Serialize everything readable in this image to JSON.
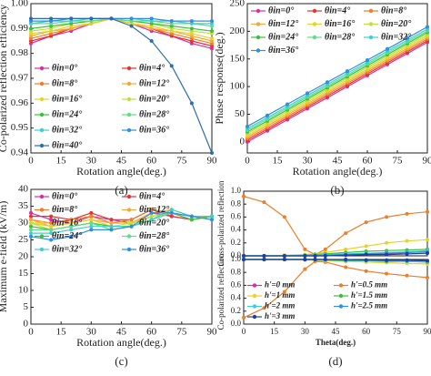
{
  "chart_data": [
    {
      "type": "line",
      "panel_label": "(a)",
      "xlabel": "Rotation angle(deg.)",
      "ylabel": "Co-polarized reflection efficiency",
      "x": [
        0,
        10,
        20,
        30,
        40,
        50,
        60,
        70,
        80,
        90
      ],
      "xlim": [
        0,
        90
      ],
      "xticks": [
        0,
        15,
        30,
        45,
        60,
        75,
        90
      ],
      "ylim": [
        0.94,
        1.0
      ],
      "yticks": [
        0.94,
        0.95,
        0.96,
        0.97,
        0.98,
        0.99,
        {
          "value": 1,
          "label": "1.00"
        }
      ],
      "legend": "lower left",
      "legend_columns": 2,
      "series": [
        {
          "name": "θin=0°",
          "color": "#d62fa0",
          "values": [
            0.984,
            0.987,
            0.989,
            0.992,
            0.994,
            0.992,
            0.989,
            0.987,
            0.984,
            0.982
          ]
        },
        {
          "name": "θin=4°",
          "color": "#e03535",
          "values": [
            0.985,
            0.987,
            0.99,
            0.992,
            0.994,
            0.992,
            0.99,
            0.987,
            0.985,
            0.983
          ]
        },
        {
          "name": "θin=8°",
          "color": "#ef7d2a",
          "values": [
            0.986,
            0.988,
            0.99,
            0.992,
            0.994,
            0.992,
            0.99,
            0.988,
            0.986,
            0.984
          ]
        },
        {
          "name": "θin=12°",
          "color": "#f2a93b",
          "values": [
            0.987,
            0.989,
            0.99,
            0.992,
            0.994,
            0.992,
            0.99,
            0.989,
            0.987,
            0.985
          ]
        },
        {
          "name": "θin=16°",
          "color": "#e9d224",
          "values": [
            0.988,
            0.989,
            0.991,
            0.992,
            0.994,
            0.992,
            0.991,
            0.989,
            0.988,
            0.986
          ]
        },
        {
          "name": "θin=20°",
          "color": "#bfe040",
          "values": [
            0.989,
            0.99,
            0.992,
            0.993,
            0.994,
            0.993,
            0.992,
            0.99,
            0.989,
            0.988
          ]
        },
        {
          "name": "θin=24°",
          "color": "#3cbf3c",
          "values": [
            0.99,
            0.991,
            0.992,
            0.993,
            0.994,
            0.993,
            0.992,
            0.991,
            0.99,
            0.989
          ]
        },
        {
          "name": "θin=28°",
          "color": "#62dd86",
          "values": [
            0.992,
            0.992,
            0.993,
            0.993,
            0.994,
            0.993,
            0.993,
            0.992,
            0.992,
            0.991
          ]
        },
        {
          "name": "θin=32°",
          "color": "#3fcfd2",
          "values": [
            0.992,
            0.993,
            0.993,
            0.994,
            0.994,
            0.994,
            0.993,
            0.993,
            0.992,
            0.992
          ]
        },
        {
          "name": "θin=36°",
          "color": "#2f8fe0",
          "values": [
            0.993,
            0.993,
            0.994,
            0.994,
            0.994,
            0.994,
            0.994,
            0.993,
            0.993,
            0.993
          ]
        },
        {
          "name": "θin=40°",
          "color": "#2b6eae",
          "values": [
            0.994,
            0.994,
            0.994,
            0.994,
            0.994,
            0.991,
            0.985,
            0.975,
            0.96,
            0.94
          ]
        }
      ]
    },
    {
      "type": "line",
      "panel_label": "(b)",
      "xlabel": "Rotation angle(deg.)",
      "ylabel": "Phase response(deg.)",
      "x": [
        0,
        10,
        20,
        30,
        40,
        50,
        60,
        70,
        80,
        90
      ],
      "xlim": [
        0,
        90
      ],
      "xticks": [
        0,
        15,
        30,
        45,
        60,
        75,
        90
      ],
      "ylim": [
        -20,
        250
      ],
      "yticks": [
        0,
        50,
        100,
        150,
        200,
        250
      ],
      "legend": "upper left",
      "legend_columns": 3,
      "series": [
        {
          "name": "θin=0°",
          "color": "#d62fa0",
          "values": [
            0,
            20,
            40,
            60,
            80,
            100,
            120,
            140,
            160,
            180
          ]
        },
        {
          "name": "θin=4°",
          "color": "#e03535",
          "values": [
            3,
            23,
            43,
            63,
            83,
            103,
            123,
            143,
            163,
            183
          ]
        },
        {
          "name": "θin=8°",
          "color": "#ef7d2a",
          "values": [
            6,
            26,
            46,
            66,
            86,
            106,
            126,
            146,
            166,
            186
          ]
        },
        {
          "name": "θin=12°",
          "color": "#f2a93b",
          "values": [
            9,
            29,
            49,
            69,
            89,
            109,
            129,
            149,
            169,
            189
          ]
        },
        {
          "name": "θin=16°",
          "color": "#e9d224",
          "values": [
            12,
            32,
            52,
            72,
            92,
            112,
            132,
            152,
            172,
            192
          ]
        },
        {
          "name": "θin=20°",
          "color": "#bfe040",
          "values": [
            15,
            35,
            55,
            75,
            95,
            115,
            135,
            155,
            175,
            195
          ]
        },
        {
          "name": "θin=24°",
          "color": "#3cbf3c",
          "values": [
            18,
            38,
            58,
            78,
            98,
            118,
            138,
            158,
            178,
            198
          ]
        },
        {
          "name": "θin=28°",
          "color": "#62dd86",
          "values": [
            21,
            41,
            61,
            81,
            101,
            121,
            141,
            161,
            181,
            201
          ]
        },
        {
          "name": "θin=32°",
          "color": "#3fcfd2",
          "values": [
            24,
            44,
            64,
            84,
            104,
            124,
            144,
            164,
            184,
            204
          ]
        },
        {
          "name": "θin=36°",
          "color": "#2f8fe0",
          "values": [
            28,
            48,
            68,
            88,
            108,
            128,
            148,
            168,
            188,
            208
          ]
        }
      ]
    },
    {
      "type": "line",
      "panel_label": "(c)",
      "xlabel": "Rotation angle(deg.)",
      "ylabel": "Maximum e-field (kV/m)",
      "x": [
        0,
        10,
        20,
        30,
        40,
        50,
        60,
        70,
        80,
        90
      ],
      "xlim": [
        0,
        90
      ],
      "xticks": [
        0,
        15,
        30,
        45,
        60,
        75,
        90
      ],
      "ylim": [
        0,
        40
      ],
      "yticks": [
        0,
        5,
        10,
        15,
        20,
        25,
        30,
        35,
        40
      ],
      "legend": "upper left",
      "legend_columns": 2,
      "series": [
        {
          "name": "θin=0°",
          "color": "#d62fa0",
          "values": [
            33,
            31,
            30,
            32,
            31,
            30,
            33,
            32,
            31,
            32
          ]
        },
        {
          "name": "θin=4°",
          "color": "#e03535",
          "values": [
            32,
            32,
            31,
            33,
            31,
            31,
            34,
            32,
            31,
            32
          ]
        },
        {
          "name": "θin=8°",
          "color": "#ef7d2a",
          "values": [
            31,
            30,
            31,
            32,
            30,
            31,
            34,
            33,
            32,
            32
          ]
        },
        {
          "name": "θin=12°",
          "color": "#f2a93b",
          "values": [
            31,
            29,
            30,
            31,
            30,
            30,
            33,
            34,
            32,
            31
          ]
        },
        {
          "name": "θin=16°",
          "color": "#e9d224",
          "values": [
            30,
            29,
            30,
            31,
            29,
            30,
            32,
            33,
            32,
            32
          ]
        },
        {
          "name": "θin=20°",
          "color": "#bfe040",
          "values": [
            30,
            28,
            29,
            30,
            29,
            29,
            32,
            33,
            31,
            32
          ]
        },
        {
          "name": "θin=24°",
          "color": "#3cbf3c",
          "values": [
            29,
            28,
            29,
            30,
            29,
            29,
            31,
            33,
            31,
            32
          ]
        },
        {
          "name": "θin=28°",
          "color": "#62dd86",
          "values": [
            28,
            28,
            29,
            30,
            28,
            29,
            31,
            33,
            32,
            32
          ]
        },
        {
          "name": "θin=32°",
          "color": "#3fcfd2",
          "values": [
            27,
            27,
            28,
            29,
            29,
            29,
            31,
            34,
            32,
            32
          ]
        },
        {
          "name": "θin=36°",
          "color": "#2f8fe0",
          "values": [
            26,
            25,
            26,
            28,
            28,
            29,
            33,
            33,
            32,
            31
          ]
        }
      ]
    },
    {
      "type": "line",
      "ylabel": "Cross-polarized reflection",
      "x": [
        0,
        10,
        20,
        30,
        35,
        40,
        50,
        60,
        70,
        80,
        90
      ],
      "xlim": [
        0,
        90
      ],
      "ylim": [
        0,
        1
      ],
      "yticks": [
        {
          "value": 0,
          "label": "0.0"
        },
        0.2,
        0.4,
        0.6,
        0.8,
        {
          "value": 1,
          "label": "1.0"
        }
      ],
      "series": [
        {
          "color": "#d62fa0",
          "values": [
            0,
            0,
            0,
            0,
            0,
            0,
            0.01,
            0.02,
            0.03,
            0.05,
            0.07
          ]
        },
        {
          "color": "#ef7d2a",
          "values": [
            0.92,
            0.83,
            0.6,
            0.1,
            0.02,
            0.1,
            0.35,
            0.52,
            0.6,
            0.65,
            0.68
          ]
        },
        {
          "color": "#e9d224",
          "values": [
            0,
            0,
            0.01,
            0.02,
            0.03,
            0.05,
            0.1,
            0.15,
            0.2,
            0.23,
            0.25
          ]
        },
        {
          "color": "#3cbf3c",
          "values": [
            0,
            0,
            0,
            0.01,
            0.02,
            0.03,
            0.05,
            0.07,
            0.08,
            0.09,
            0.1
          ]
        },
        {
          "color": "#3fcfd2",
          "values": [
            0,
            0,
            0,
            0,
            0.01,
            0.02,
            0.03,
            0.04,
            0.05,
            0.06,
            0.08
          ]
        },
        {
          "color": "#2f8fe0",
          "values": [
            0,
            0,
            0,
            0,
            0,
            0.01,
            0.02,
            0.03,
            0.04,
            0.05,
            0.06
          ]
        },
        {
          "color": "#1f3f9f",
          "values": [
            0,
            0,
            0,
            0,
            0,
            0,
            0.01,
            0.02,
            0.02,
            0.03,
            0.04
          ]
        }
      ]
    },
    {
      "type": "line",
      "panel_label": "(d)",
      "xlabel": "Theta(deg.)",
      "ylabel": "Co-polarized reflection",
      "x": [
        0,
        10,
        20,
        30,
        35,
        40,
        50,
        60,
        70,
        80,
        90
      ],
      "xlim": [
        0,
        90
      ],
      "xticks": [
        0,
        15,
        30,
        45,
        60,
        75,
        90
      ],
      "ylim": [
        0,
        1
      ],
      "yticks": [
        {
          "value": 0,
          "label": "0.0"
        },
        0.2,
        0.4,
        0.6,
        0.8,
        {
          "value": 1,
          "label": "1.0"
        }
      ],
      "legend": "lower left",
      "legend_columns": 2,
      "series": [
        {
          "name": "h'=0 mm",
          "color": "#d62fa0",
          "values": [
            1,
            1,
            1,
            1,
            1,
            1,
            0.99,
            0.99,
            0.98,
            0.97,
            0.96
          ]
        },
        {
          "name": "h'=0.5 mm",
          "color": "#ef7d2a",
          "values": [
            0.1,
            0.25,
            0.5,
            0.85,
            0.97,
            0.96,
            0.88,
            0.82,
            0.78,
            0.75,
            0.72
          ]
        },
        {
          "name": "h'=1 mm",
          "color": "#e9d224",
          "values": [
            1,
            1,
            1,
            0.99,
            0.99,
            0.98,
            0.97,
            0.96,
            0.95,
            0.94,
            0.93
          ]
        },
        {
          "name": "h'=1.5 mm",
          "color": "#3cbf3c",
          "values": [
            1,
            1,
            1,
            1,
            0.99,
            0.99,
            0.98,
            0.98,
            0.97,
            0.97,
            0.96
          ]
        },
        {
          "name": "h'=2 mm",
          "color": "#3fcfd2",
          "values": [
            1,
            1,
            1,
            1,
            1,
            0.99,
            0.99,
            0.98,
            0.98,
            0.97,
            0.97
          ]
        },
        {
          "name": "h'=2.5 mm",
          "color": "#2f8fe0",
          "values": [
            1,
            1,
            1,
            1,
            1,
            1,
            0.99,
            0.99,
            0.98,
            0.98,
            0.98
          ]
        },
        {
          "name": "h'=3 mm",
          "color": "#1f3f9f",
          "values": [
            1,
            1,
            1,
            1,
            1,
            1,
            1,
            0.99,
            0.99,
            0.99,
            0.98
          ]
        }
      ]
    }
  ]
}
